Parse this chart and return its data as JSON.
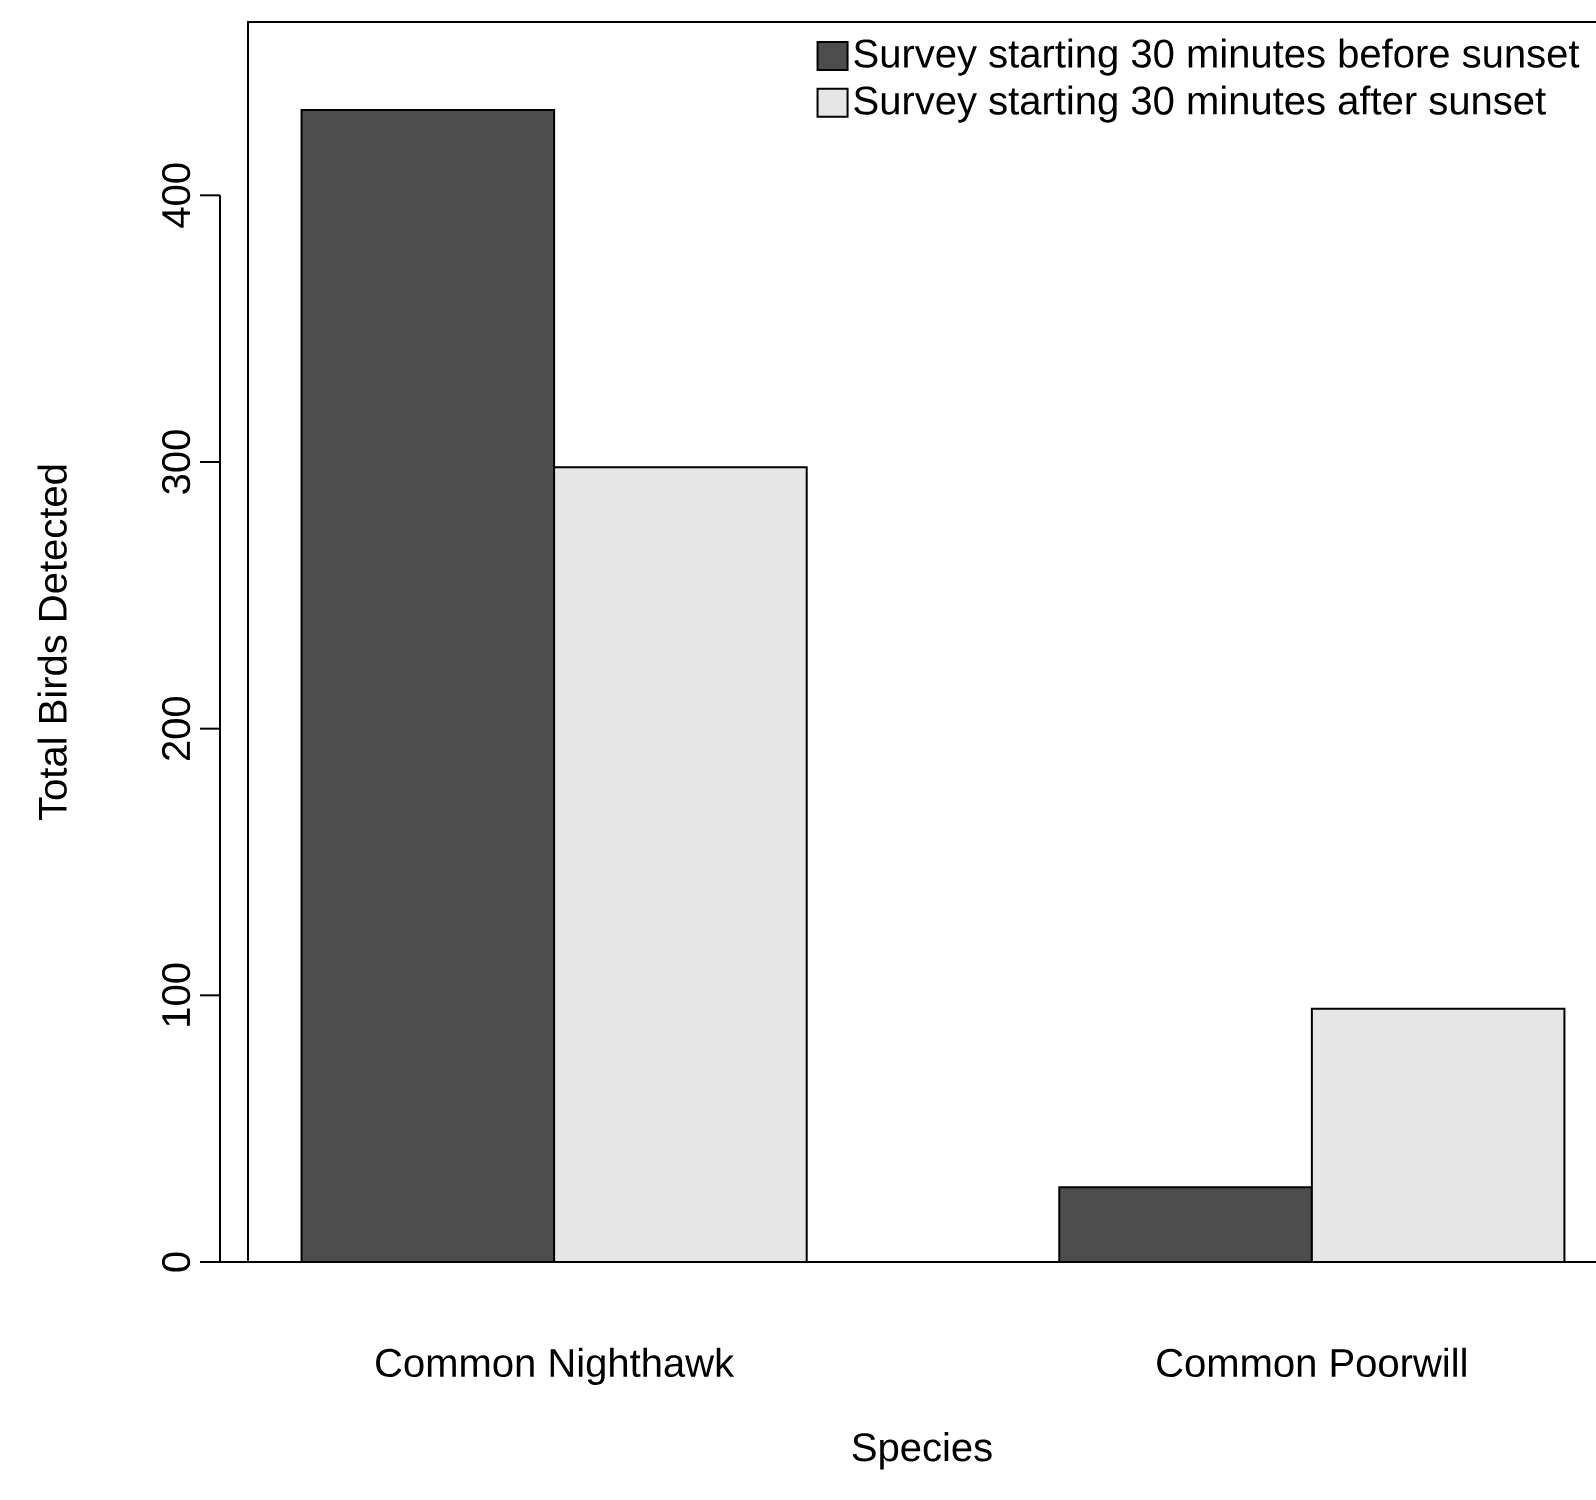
{
  "chart_data": {
    "type": "bar",
    "xlabel": "Species",
    "ylabel": "Total Birds Detected",
    "categories": [
      "Common Nighthawk",
      "Common Poorwill"
    ],
    "series": [
      {
        "name": "Survey starting 30 minutes before sunset",
        "color": "#4d4d4d",
        "values": [
          432,
          28
        ]
      },
      {
        "name": "Survey starting 30 minutes after sunset",
        "color": "#e6e6e6",
        "values": [
          298,
          95
        ]
      }
    ],
    "ylim": [
      0,
      465
    ],
    "yticks": [
      0,
      100,
      200,
      300,
      400
    ],
    "legend": "top right",
    "grid": false
  }
}
